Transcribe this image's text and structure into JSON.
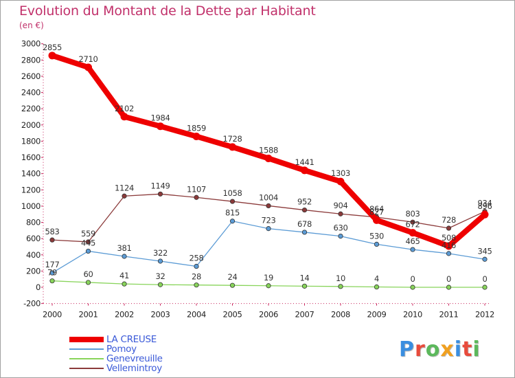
{
  "title": "Evolution du Montant de la Dette par Habitant",
  "unit_label": "(en €)",
  "logo": {
    "text": "Proxiti",
    "colors": [
      "#3a8ee0",
      "#e84b3c",
      "#5cb85c",
      "#f0a020",
      "#3a8ee0",
      "#e84b3c",
      "#5cb85c"
    ]
  },
  "chart_data": {
    "type": "line",
    "title": "Evolution du Montant de la Dette par Habitant",
    "subtitle": "(en €)",
    "xlabel": "",
    "ylabel": "",
    "categories": [
      "2000",
      "2001",
      "2002",
      "2003",
      "2004",
      "2005",
      "2006",
      "2007",
      "2008",
      "2009",
      "2010",
      "2011",
      "2012"
    ],
    "ylim": [
      -200,
      3000
    ],
    "yticks": [
      -200,
      0,
      200,
      400,
      600,
      800,
      1000,
      1200,
      1400,
      1600,
      1800,
      2000,
      2200,
      2400,
      2600,
      2800,
      3000
    ],
    "grid": false,
    "legend_position": "bottom-left",
    "series": [
      {
        "name": "LA CREUSE",
        "color": "#ee0000",
        "values": [
          2855,
          2710,
          2102,
          1984,
          1859,
          1728,
          1588,
          1441,
          1303,
          827,
          672,
          508,
          896
        ]
      },
      {
        "name": "Pomoy",
        "color": "#5b9bd5",
        "values": [
          177,
          445,
          381,
          322,
          258,
          815,
          723,
          678,
          630,
          530,
          465,
          416,
          345
        ]
      },
      {
        "name": "Genevreuille",
        "color": "#88d45a",
        "values": [
          79,
          60,
          41,
          32,
          28,
          24,
          19,
          14,
          10,
          4,
          0,
          0,
          0
        ]
      },
      {
        "name": "Vellemintroy",
        "color": "#8b3a3a",
        "values": [
          583,
          559,
          1124,
          1149,
          1107,
          1058,
          1004,
          952,
          904,
          864,
          803,
          728,
          934
        ]
      }
    ]
  }
}
